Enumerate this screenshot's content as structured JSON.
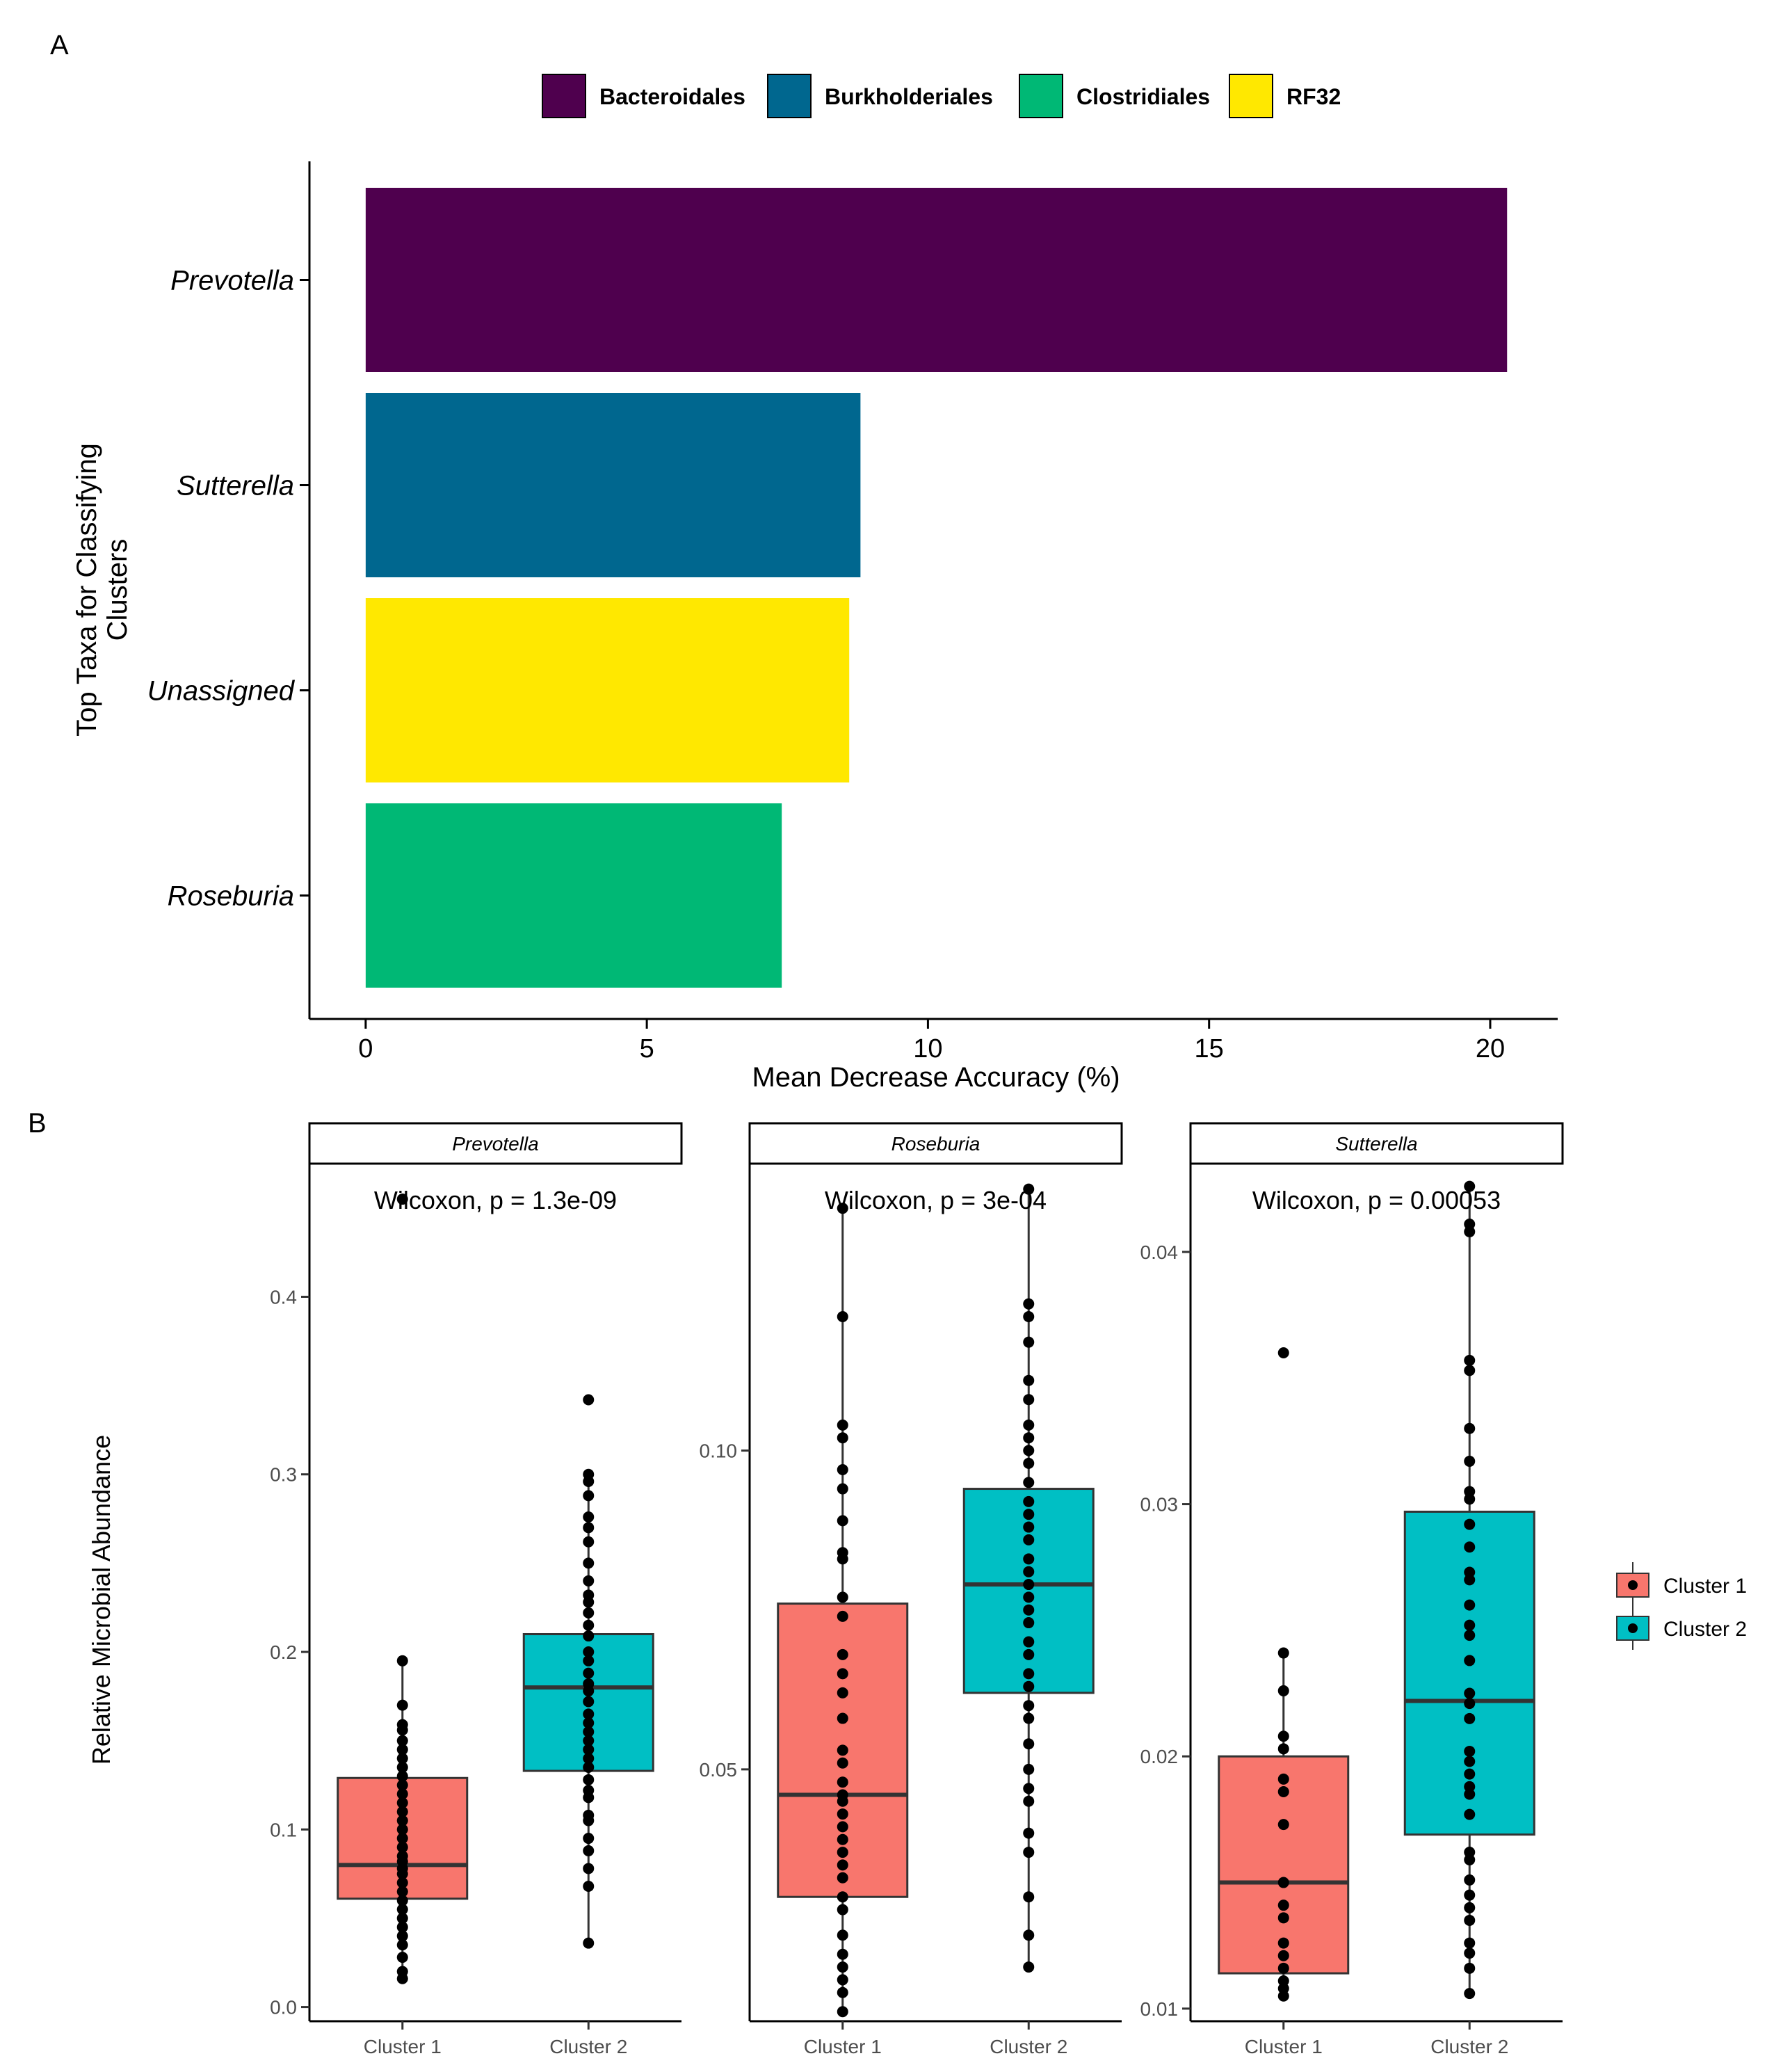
{
  "panel_a_letter": "A",
  "panel_b_letter": "B",
  "chart_data": [
    {
      "type": "bar",
      "orientation": "horizontal",
      "panel": "A",
      "categories": [
        "Prevotella",
        "Sutterella",
        "Unassigned",
        "Roseburia"
      ],
      "values": [
        20.3,
        8.8,
        8.6,
        7.4
      ],
      "bar_colors": [
        "#4F004E",
        "#00678F",
        "#FFE800",
        "#00B875"
      ],
      "order_assignment": [
        "Bacteroidales",
        "Burkholderiales",
        "RF32",
        "Clostridiales"
      ],
      "legend": [
        {
          "label": "Bacteroidales",
          "color": "#4F004E"
        },
        {
          "label": "Burkholderiales",
          "color": "#00678F"
        },
        {
          "label": "Clostridiales",
          "color": "#00B875"
        },
        {
          "label": "RF32",
          "color": "#FFE800"
        }
      ],
      "xlabel": "Mean Decrease Accuracy (%)",
      "ylabel_line1": "Top Taxa for Classifying",
      "ylabel_line2": "Clusters",
      "xlim": [
        -1,
        21.2
      ],
      "xticks": [
        0,
        5,
        10,
        15,
        20
      ],
      "legend_position": "top"
    },
    {
      "type": "box",
      "panel": "B",
      "ylabel": "Relative Microbial Abundance",
      "groups": [
        "Cluster 1",
        "Cluster 2"
      ],
      "group_colors": [
        "#F8766D",
        "#00BFC4"
      ],
      "legend": [
        {
          "label": "Cluster 1",
          "color": "#F8766D"
        },
        {
          "label": "Cluster 2",
          "color": "#00BFC4"
        }
      ],
      "legend_position": "right",
      "facets": [
        {
          "title": "Prevotella",
          "stat_label": "Wilcoxon, p = 1.3e-09",
          "ylim": [
            -0.008,
            0.475
          ],
          "yticks": [
            0.0,
            0.1,
            0.2,
            0.3,
            0.4
          ],
          "ytick_labels": [
            "0.0",
            "0.1",
            "0.2",
            "0.3",
            "0.4"
          ],
          "boxes": [
            {
              "q1": 0.061,
              "median": 0.08,
              "q3": 0.129,
              "whisker_low": 0.016,
              "whisker_high": 0.195,
              "points": [
                0.455,
                0.195,
                0.17,
                0.159,
                0.156,
                0.15,
                0.145,
                0.14,
                0.135,
                0.13,
                0.125,
                0.12,
                0.115,
                0.11,
                0.105,
                0.1,
                0.095,
                0.09,
                0.085,
                0.082,
                0.078,
                0.075,
                0.07,
                0.065,
                0.06,
                0.055,
                0.05,
                0.045,
                0.04,
                0.035,
                0.028,
                0.02,
                0.016
              ]
            },
            {
              "q1": 0.133,
              "median": 0.18,
              "q3": 0.21,
              "whisker_low": 0.036,
              "whisker_high": 0.3,
              "points": [
                0.342,
                0.3,
                0.296,
                0.288,
                0.276,
                0.27,
                0.262,
                0.25,
                0.24,
                0.232,
                0.228,
                0.222,
                0.215,
                0.209,
                0.2,
                0.195,
                0.188,
                0.182,
                0.178,
                0.172,
                0.165,
                0.16,
                0.155,
                0.15,
                0.145,
                0.14,
                0.135,
                0.128,
                0.122,
                0.118,
                0.108,
                0.105,
                0.095,
                0.088,
                0.078,
                0.068,
                0.036
              ]
            }
          ]
        },
        {
          "title": "Roseburia",
          "stat_label": "Wilcoxon, p = 3e-04",
          "ylim": [
            0.0105,
            0.145
          ],
          "yticks": [
            0.05,
            0.1
          ],
          "ytick_labels": [
            "0.05",
            "0.10"
          ],
          "boxes": [
            {
              "q1": 0.03,
              "median": 0.046,
              "q3": 0.076,
              "whisker_low": 0.012,
              "whisker_high": 0.138,
              "points": [
                0.138,
                0.121,
                0.104,
                0.102,
                0.097,
                0.094,
                0.089,
                0.084,
                0.083,
                0.077,
                0.074,
                0.068,
                0.065,
                0.062,
                0.058,
                0.053,
                0.051,
                0.048,
                0.046,
                0.045,
                0.043,
                0.041,
                0.039,
                0.037,
                0.035,
                0.033,
                0.03,
                0.028,
                0.024,
                0.021,
                0.019,
                0.017,
                0.015,
                0.012
              ]
            },
            {
              "q1": 0.062,
              "median": 0.079,
              "q3": 0.094,
              "whisker_low": 0.019,
              "whisker_high": 0.141,
              "points": [
                0.141,
                0.123,
                0.121,
                0.117,
                0.111,
                0.108,
                0.104,
                0.102,
                0.1,
                0.098,
                0.095,
                0.092,
                0.09,
                0.088,
                0.086,
                0.083,
                0.081,
                0.079,
                0.077,
                0.075,
                0.073,
                0.07,
                0.068,
                0.065,
                0.063,
                0.06,
                0.058,
                0.054,
                0.05,
                0.047,
                0.045,
                0.04,
                0.037,
                0.03,
                0.024,
                0.019
              ]
            }
          ]
        },
        {
          "title": "Sutterella",
          "stat_label": "Wilcoxon, p = 0.00053",
          "ylim": [
            0.0095,
            0.0435
          ],
          "yticks": [
            0.01,
            0.02,
            0.03,
            0.04
          ],
          "ytick_labels": [
            "0.01",
            "0.02",
            "0.03",
            "0.04"
          ],
          "boxes": [
            {
              "q1": 0.0114,
              "median": 0.015,
              "q3": 0.02,
              "whisker_low": 0.0105,
              "whisker_high": 0.0241,
              "points": [
                0.036,
                0.0241,
                0.0226,
                0.0208,
                0.0203,
                0.0191,
                0.0186,
                0.0173,
                0.015,
                0.0141,
                0.0136,
                0.0126,
                0.0121,
                0.0116,
                0.0111,
                0.0108,
                0.0105
              ]
            },
            {
              "q1": 0.0169,
              "median": 0.0222,
              "q3": 0.0297,
              "whisker_low": 0.0106,
              "whisker_high": 0.0426,
              "points": [
                0.0426,
                0.0411,
                0.0408,
                0.0357,
                0.0353,
                0.033,
                0.0317,
                0.0305,
                0.0302,
                0.0292,
                0.0283,
                0.0273,
                0.027,
                0.026,
                0.0252,
                0.0248,
                0.0238,
                0.0225,
                0.0221,
                0.0215,
                0.0202,
                0.0198,
                0.0193,
                0.0188,
                0.0185,
                0.0177,
                0.0162,
                0.0159,
                0.0151,
                0.0145,
                0.014,
                0.0135,
                0.0126,
                0.0122,
                0.0116,
                0.0106
              ]
            }
          ]
        }
      ]
    }
  ]
}
